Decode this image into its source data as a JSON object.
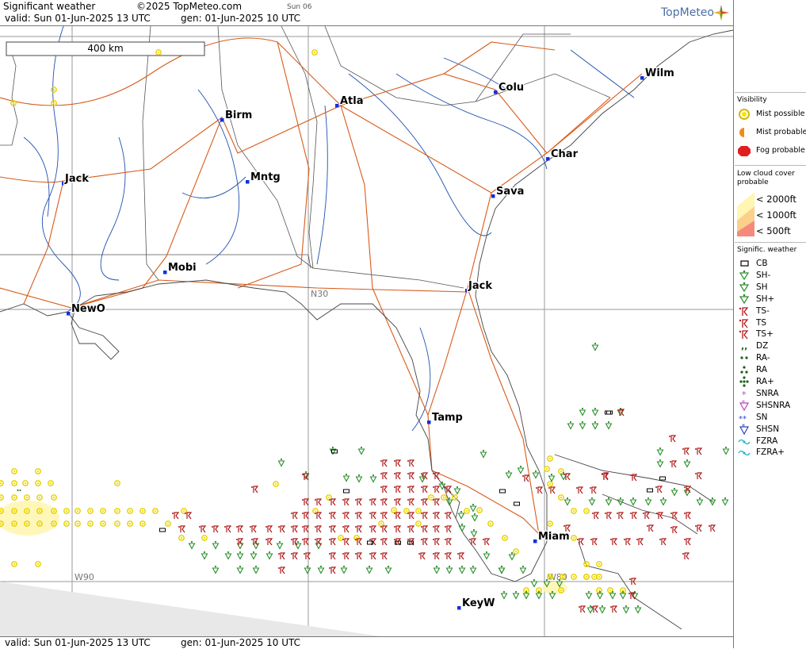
{
  "header": {
    "title": "Significant weather",
    "copyright": "©2025 TopMeteo.com",
    "day": "Sun 06",
    "valid": "valid:  Sun  01-Jun-2025  13 UTC",
    "generated": "gen: 01-Jun-2025 10 UTC",
    "logo": "TopMeteo"
  },
  "footer": {
    "valid": "valid:  Sun  01-Jun-2025  13 UTC",
    "generated": "gen: 01-Jun-2025 10 UTC"
  },
  "map": {
    "scale_label": "400 km",
    "grid_labels": {
      "lat_30": "N30",
      "lon_90": "W90",
      "lon_80": "W80"
    },
    "cities": [
      {
        "name": "Wilm"
      },
      {
        "name": "Colu"
      },
      {
        "name": "Atla"
      },
      {
        "name": "Birm"
      },
      {
        "name": "Char"
      },
      {
        "name": "Jack"
      },
      {
        "name": "Mntg"
      },
      {
        "name": "Sava"
      },
      {
        "name": "Mobi"
      },
      {
        "name": "Jack"
      },
      {
        "name": "NewO"
      },
      {
        "name": "Tamp"
      },
      {
        "name": "Miam"
      },
      {
        "name": "KeyW"
      }
    ]
  },
  "legend": {
    "visibility": {
      "title": "Visibility",
      "items": [
        {
          "label": "Mist possible",
          "color": "#f5e400"
        },
        {
          "label": "Mist probable",
          "color": "#f08a1c"
        },
        {
          "label": "Fog probable",
          "color": "#e02020"
        }
      ]
    },
    "low_cloud": {
      "title_line1": "Low cloud cover",
      "title_line2": "probable",
      "items": [
        {
          "label": "< 2000ft",
          "color": "#fff6b3"
        },
        {
          "label": "< 1000ft",
          "color": "#fbd08a"
        },
        {
          "label": "<   500ft",
          "color": "#f58a7a"
        }
      ]
    },
    "sigwx": {
      "title": "Signific. weather",
      "items": [
        {
          "label": "CB",
          "icon": "cb-icon",
          "color": "#000000"
        },
        {
          "label": "SH-",
          "icon": "shower-light-icon",
          "color": "#2a8c2a"
        },
        {
          "label": "SH",
          "icon": "shower-icon",
          "color": "#2a8c2a"
        },
        {
          "label": "SH+",
          "icon": "shower-heavy-icon",
          "color": "#2a8c2a"
        },
        {
          "label": "TS-",
          "icon": "thunderstorm-light-icon",
          "color": "#b01818"
        },
        {
          "label": "TS",
          "icon": "thunderstorm-icon",
          "color": "#b01818"
        },
        {
          "label": "TS+",
          "icon": "thunderstorm-heavy-icon",
          "color": "#b01818"
        },
        {
          "label": "DZ",
          "icon": "drizzle-icon",
          "color": "#1a5e1a"
        },
        {
          "label": "RA-",
          "icon": "rain-light-icon",
          "color": "#1a5e1a"
        },
        {
          "label": "RA",
          "icon": "rain-icon",
          "color": "#1a5e1a"
        },
        {
          "label": "RA+",
          "icon": "rain-heavy-icon",
          "color": "#1a5e1a"
        },
        {
          "label": "SNRA",
          "icon": "snow-rain-icon",
          "color": "#c040c0"
        },
        {
          "label": "SHSNRA",
          "icon": "snow-rain-shower-icon",
          "color": "#c040c0"
        },
        {
          "label": "SN",
          "icon": "snow-icon",
          "color": "#3040c0"
        },
        {
          "label": "SHSN",
          "icon": "snow-shower-icon",
          "color": "#3040c0"
        },
        {
          "label": "FZRA",
          "icon": "freezing-rain-icon",
          "color": "#20b0d0"
        },
        {
          "label": "FZRA+",
          "icon": "freezing-rain-heavy-icon",
          "color": "#20b0d0"
        }
      ]
    }
  }
}
